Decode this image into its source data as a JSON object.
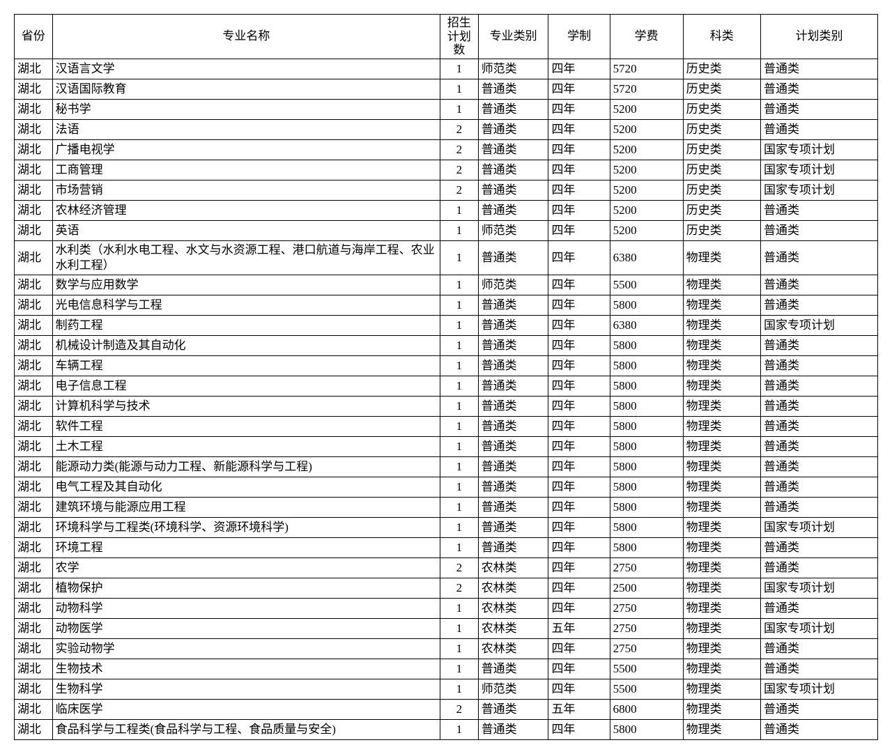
{
  "table": {
    "columns": [
      "省份",
      "专业名称",
      "招生计划数",
      "专业类别",
      "学制",
      "学费",
      "科类",
      "计划类别"
    ],
    "col_classes": [
      "col-province",
      "col-major",
      "col-plan",
      "col-type",
      "col-years",
      "col-fee",
      "col-subject",
      "col-category"
    ],
    "col_align": [
      "left",
      "left",
      "center",
      "left",
      "left",
      "left",
      "left",
      "left"
    ],
    "rows": [
      [
        "湖北",
        "汉语言文学",
        "1",
        "师范类",
        "四年",
        "5720",
        "历史类",
        "普通类"
      ],
      [
        "湖北",
        "汉语国际教育",
        "1",
        "普通类",
        "四年",
        "5720",
        "历史类",
        "普通类"
      ],
      [
        "湖北",
        "秘书学",
        "1",
        "普通类",
        "四年",
        "5200",
        "历史类",
        "普通类"
      ],
      [
        "湖北",
        "法语",
        "2",
        "普通类",
        "四年",
        "5200",
        "历史类",
        "普通类"
      ],
      [
        "湖北",
        "广播电视学",
        "2",
        "普通类",
        "四年",
        "5200",
        "历史类",
        "国家专项计划"
      ],
      [
        "湖北",
        "工商管理",
        "2",
        "普通类",
        "四年",
        "5200",
        "历史类",
        "国家专项计划"
      ],
      [
        "湖北",
        "市场营销",
        "2",
        "普通类",
        "四年",
        "5200",
        "历史类",
        "国家专项计划"
      ],
      [
        "湖北",
        "农林经济管理",
        "1",
        "普通类",
        "四年",
        "5200",
        "历史类",
        "普通类"
      ],
      [
        "湖北",
        "英语",
        "1",
        "师范类",
        "四年",
        "5200",
        "历史类",
        "普通类"
      ],
      [
        "湖北",
        "水利类（水利水电工程、水文与水资源工程、港口航道与海岸工程、农业水利工程）",
        "1",
        "普通类",
        "四年",
        "6380",
        "物理类",
        "普通类"
      ],
      [
        "湖北",
        "数学与应用数学",
        "1",
        "师范类",
        "四年",
        "5500",
        "物理类",
        "普通类"
      ],
      [
        "湖北",
        "光电信息科学与工程",
        "1",
        "普通类",
        "四年",
        "5800",
        "物理类",
        "普通类"
      ],
      [
        "湖北",
        "制药工程",
        "1",
        "普通类",
        "四年",
        "6380",
        "物理类",
        "国家专项计划"
      ],
      [
        "湖北",
        "机械设计制造及其自动化",
        "1",
        "普通类",
        "四年",
        "5800",
        "物理类",
        "普通类"
      ],
      [
        "湖北",
        "车辆工程",
        "1",
        "普通类",
        "四年",
        "5800",
        "物理类",
        "普通类"
      ],
      [
        "湖北",
        "电子信息工程",
        "1",
        "普通类",
        "四年",
        "5800",
        "物理类",
        "普通类"
      ],
      [
        "湖北",
        "计算机科学与技术",
        "1",
        "普通类",
        "四年",
        "5800",
        "物理类",
        "普通类"
      ],
      [
        "湖北",
        "软件工程",
        "1",
        "普通类",
        "四年",
        "5800",
        "物理类",
        "普通类"
      ],
      [
        "湖北",
        "土木工程",
        "1",
        "普通类",
        "四年",
        "5800",
        "物理类",
        "普通类"
      ],
      [
        "湖北",
        "能源动力类(能源与动力工程、新能源科学与工程)",
        "1",
        "普通类",
        "四年",
        "5800",
        "物理类",
        "普通类"
      ],
      [
        "湖北",
        "电气工程及其自动化",
        "1",
        "普通类",
        "四年",
        "5800",
        "物理类",
        "普通类"
      ],
      [
        "湖北",
        "建筑环境与能源应用工程",
        "1",
        "普通类",
        "四年",
        "5800",
        "物理类",
        "普通类"
      ],
      [
        "湖北",
        "环境科学与工程类(环境科学、资源环境科学)",
        "1",
        "普通类",
        "四年",
        "5800",
        "物理类",
        "国家专项计划"
      ],
      [
        "湖北",
        "环境工程",
        "1",
        "普通类",
        "四年",
        "5800",
        "物理类",
        "普通类"
      ],
      [
        "湖北",
        "农学",
        "2",
        "农林类",
        "四年",
        "2750",
        "物理类",
        "普通类"
      ],
      [
        "湖北",
        "植物保护",
        "2",
        "农林类",
        "四年",
        "2500",
        "物理类",
        "国家专项计划"
      ],
      [
        "湖北",
        "动物科学",
        "1",
        "农林类",
        "四年",
        "2750",
        "物理类",
        "普通类"
      ],
      [
        "湖北",
        "动物医学",
        "1",
        "农林类",
        "五年",
        "2750",
        "物理类",
        "国家专项计划"
      ],
      [
        "湖北",
        "实验动物学",
        "1",
        "农林类",
        "四年",
        "2750",
        "物理类",
        "普通类"
      ],
      [
        "湖北",
        "生物技术",
        "1",
        "普通类",
        "四年",
        "5500",
        "物理类",
        "普通类"
      ],
      [
        "湖北",
        "生物科学",
        "1",
        "师范类",
        "四年",
        "5500",
        "物理类",
        "国家专项计划"
      ],
      [
        "湖北",
        "临床医学",
        "2",
        "普通类",
        "五年",
        "6800",
        "物理类",
        "普通类"
      ],
      [
        "湖北",
        "食品科学与工程类(食品科学与工程、食品质量与安全)",
        "1",
        "普通类",
        "四年",
        "5800",
        "物理类",
        "普通类"
      ]
    ]
  }
}
